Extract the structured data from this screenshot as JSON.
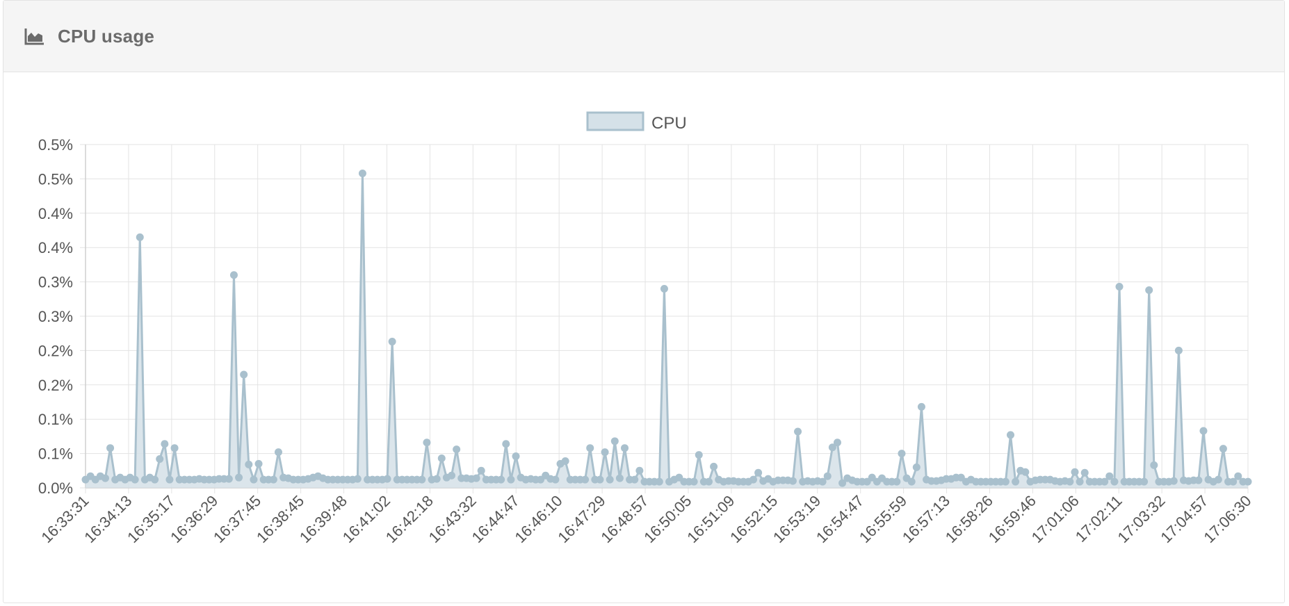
{
  "panel": {
    "title": "CPU usage",
    "icon": "area-chart-icon"
  },
  "colors": {
    "line": "#a9c0cd",
    "fill": "#d5e1e8",
    "grid": "#e3e3e3",
    "axis_text": "#555555"
  },
  "chart_data": {
    "type": "area",
    "legend": {
      "label": "CPU",
      "position": "top"
    },
    "y_tick_labels": [
      "0.0%",
      "0.1%",
      "0.1%",
      "0.2%",
      "0.2%",
      "0.3%",
      "0.3%",
      "0.4%",
      "0.4%",
      "0.5%",
      "0.5%"
    ],
    "x_tick_labels": [
      "16:33:31",
      "16:34:13",
      "16:35:17",
      "16:36:29",
      "16:37:45",
      "16:38:45",
      "16:39:48",
      "16:41:02",
      "16:42:18",
      "16:43:32",
      "16:44:47",
      "16:46:10",
      "16:47:29",
      "16:48:57",
      "16:50:05",
      "16:51:09",
      "16:52:15",
      "16:53:19",
      "16:54:47",
      "16:55:59",
      "16:57:13",
      "16:58:26",
      "16:59:46",
      "17:01:06",
      "17:02:11",
      "17:03:32",
      "17:04:57",
      "17:06:30"
    ],
    "ylim": [
      0,
      0.5
    ],
    "series": [
      {
        "name": "CPU",
        "values": [
          0.012,
          0.017,
          0.012,
          0.017,
          0.014,
          0.058,
          0.012,
          0.015,
          0.012,
          0.015,
          0.012,
          0.365,
          0.012,
          0.015,
          0.012,
          0.042,
          0.064,
          0.012,
          0.058,
          0.012,
          0.012,
          0.012,
          0.012,
          0.013,
          0.012,
          0.012,
          0.012,
          0.013,
          0.013,
          0.013,
          0.31,
          0.015,
          0.165,
          0.034,
          0.012,
          0.035,
          0.012,
          0.012,
          0.012,
          0.052,
          0.015,
          0.014,
          0.012,
          0.012,
          0.012,
          0.013,
          0.015,
          0.017,
          0.014,
          0.012,
          0.012,
          0.012,
          0.012,
          0.012,
          0.012,
          0.013,
          0.458,
          0.012,
          0.012,
          0.012,
          0.012,
          0.013,
          0.213,
          0.012,
          0.012,
          0.012,
          0.012,
          0.012,
          0.012,
          0.066,
          0.012,
          0.013,
          0.043,
          0.015,
          0.018,
          0.056,
          0.014,
          0.014,
          0.013,
          0.014,
          0.025,
          0.012,
          0.012,
          0.012,
          0.012,
          0.064,
          0.012,
          0.046,
          0.015,
          0.012,
          0.013,
          0.012,
          0.012,
          0.018,
          0.013,
          0.012,
          0.035,
          0.039,
          0.012,
          0.012,
          0.012,
          0.012,
          0.058,
          0.012,
          0.012,
          0.052,
          0.012,
          0.068,
          0.014,
          0.058,
          0.012,
          0.012,
          0.025,
          0.009,
          0.009,
          0.009,
          0.009,
          0.29,
          0.009,
          0.012,
          0.015,
          0.009,
          0.009,
          0.009,
          0.048,
          0.009,
          0.009,
          0.031,
          0.012,
          0.009,
          0.01,
          0.01,
          0.009,
          0.009,
          0.009,
          0.012,
          0.022,
          0.01,
          0.013,
          0.009,
          0.011,
          0.011,
          0.011,
          0.01,
          0.082,
          0.009,
          0.01,
          0.009,
          0.01,
          0.009,
          0.017,
          0.059,
          0.066,
          0.007,
          0.014,
          0.011,
          0.009,
          0.009,
          0.009,
          0.015,
          0.009,
          0.014,
          0.009,
          0.009,
          0.009,
          0.05,
          0.014,
          0.009,
          0.03,
          0.118,
          0.012,
          0.01,
          0.01,
          0.011,
          0.013,
          0.013,
          0.015,
          0.015,
          0.009,
          0.012,
          0.009,
          0.009,
          0.009,
          0.009,
          0.009,
          0.009,
          0.009,
          0.077,
          0.009,
          0.025,
          0.023,
          0.009,
          0.011,
          0.012,
          0.012,
          0.012,
          0.01,
          0.009,
          0.01,
          0.009,
          0.023,
          0.009,
          0.022,
          0.009,
          0.009,
          0.009,
          0.009,
          0.017,
          0.009,
          0.293,
          0.009,
          0.009,
          0.009,
          0.009,
          0.009,
          0.288,
          0.033,
          0.009,
          0.009,
          0.009,
          0.01,
          0.2,
          0.011,
          0.01,
          0.011,
          0.011,
          0.083,
          0.012,
          0.009,
          0.012,
          0.057,
          0.009,
          0.009,
          0.017,
          0.009,
          0.009
        ]
      }
    ]
  }
}
